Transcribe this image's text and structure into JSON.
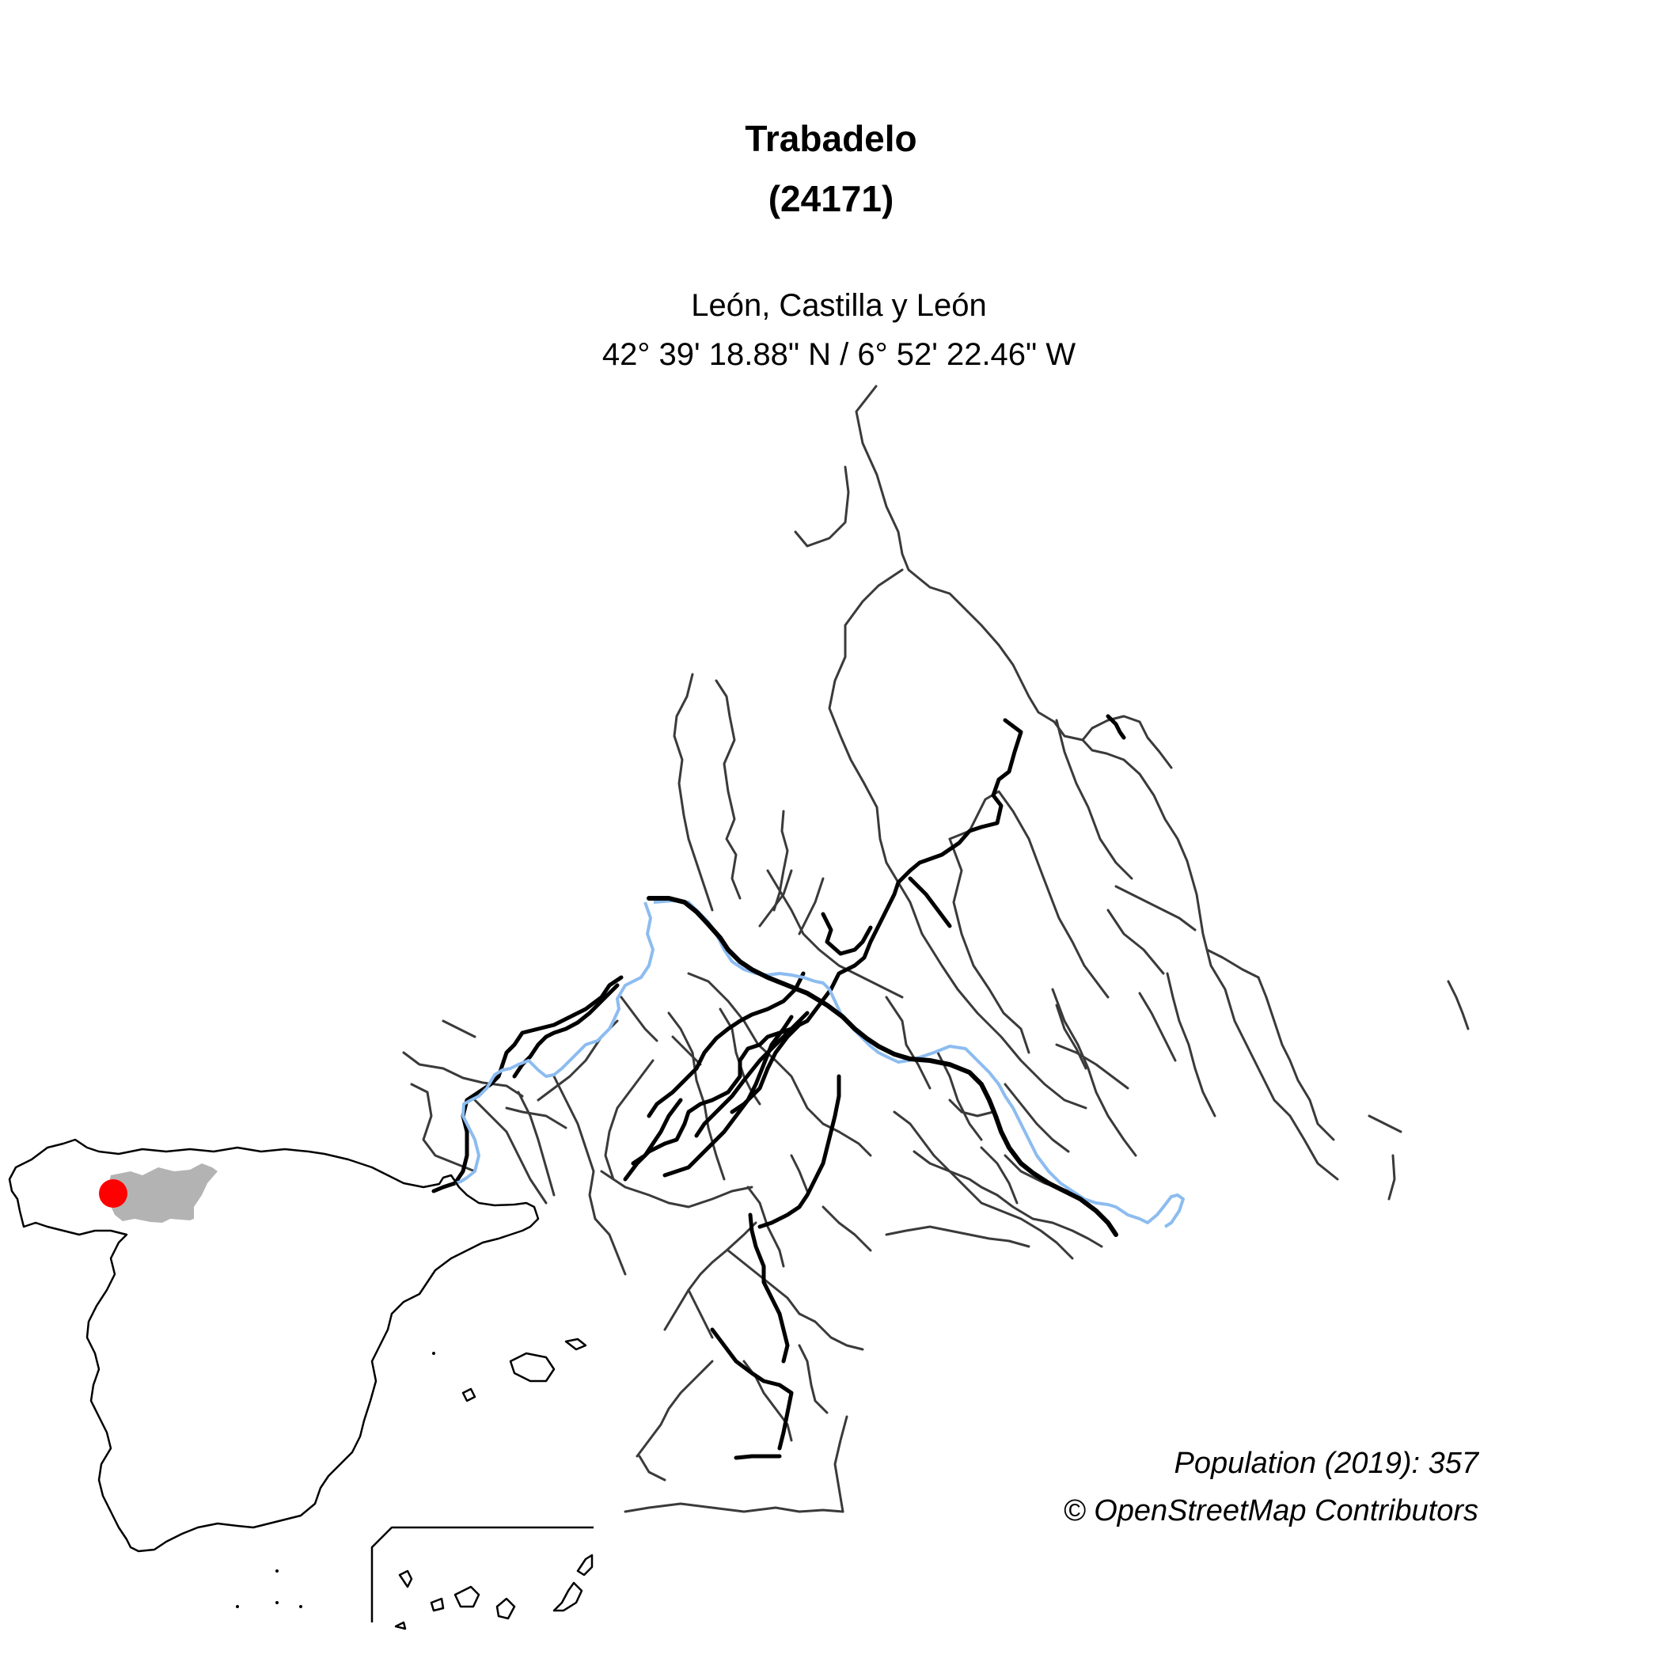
{
  "header": {
    "title": "Trabadelo",
    "code": "(24171)",
    "region": "León, Castilla y León",
    "coordinates": "42° 39' 18.88\" N / 6° 52' 22.46\" W"
  },
  "footer": {
    "population": "Population (2019): 357",
    "attribution": "© OpenStreetMap Contributors"
  },
  "colors": {
    "river": "#8cbcf0",
    "road": "#3a3a3a",
    "major_road": "#000000",
    "province_fill": "#b3b3b3",
    "location_marker": "#ff0000"
  }
}
